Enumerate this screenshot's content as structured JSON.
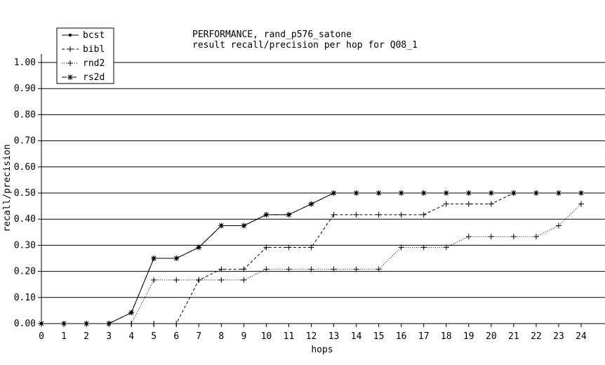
{
  "chart_data": {
    "type": "line",
    "title": "PERFORMANCE, rand_p576_satone",
    "subtitle": "result recall/precision per hop for Q08_1",
    "xlabel": "hops",
    "ylabel": "recall/precision",
    "xlim": [
      0,
      24
    ],
    "ylim": [
      0,
      1.0
    ],
    "xticks": [
      "0",
      "1",
      "2",
      "3",
      "4",
      "5",
      "6",
      "7",
      "8",
      "9",
      "10",
      "11",
      "12",
      "13",
      "14",
      "15",
      "16",
      "17",
      "18",
      "19",
      "20",
      "21",
      "22",
      "23",
      "24"
    ],
    "yticks": [
      "0.00",
      "0.10",
      "0.20",
      "0.30",
      "0.40",
      "0.50",
      "0.60",
      "0.70",
      "0.80",
      "0.90",
      "1.00"
    ],
    "x": [
      0,
      1,
      2,
      3,
      4,
      5,
      6,
      7,
      8,
      9,
      10,
      11,
      12,
      13,
      14,
      15,
      16,
      17,
      18,
      19,
      20,
      21,
      22,
      23,
      24
    ],
    "grid": "horizontal",
    "legend_position": "top-left",
    "series": [
      {
        "name": "bcst",
        "marker": "dot",
        "dash": "solid",
        "values": [
          0,
          0,
          0,
          0,
          0.042,
          0.25,
          0.25,
          0.292,
          0.375,
          0.375,
          0.417,
          0.417,
          0.458,
          0.5,
          0.5,
          0.5,
          0.5,
          0.5,
          0.5,
          0.5,
          0.5,
          0.5,
          0.5,
          0.5,
          0.5
        ]
      },
      {
        "name": "bibl",
        "marker": "plus",
        "dash": "dashed",
        "values": [
          0,
          0,
          0,
          0,
          0,
          0,
          0,
          0.167,
          0.208,
          0.208,
          0.292,
          0.292,
          0.292,
          0.417,
          0.417,
          0.417,
          0.417,
          0.417,
          0.458,
          0.458,
          0.458,
          0.5,
          0.5,
          0.5,
          0.5
        ]
      },
      {
        "name": "rnd2",
        "marker": "plus",
        "dash": "dotted",
        "values": [
          0,
          0,
          0,
          0,
          0,
          0.167,
          0.167,
          0.167,
          0.167,
          0.167,
          0.208,
          0.208,
          0.208,
          0.208,
          0.208,
          0.208,
          0.292,
          0.292,
          0.292,
          0.333,
          0.333,
          0.333,
          0.333,
          0.375,
          0.458
        ]
      },
      {
        "name": "rs2d",
        "marker": "star",
        "dash": "dashdot",
        "values": [
          0,
          0,
          0,
          0,
          0.042,
          0.25,
          0.25,
          0.292,
          0.375,
          0.375,
          0.417,
          0.417,
          0.458,
          0.5,
          0.5,
          0.5,
          0.5,
          0.5,
          0.5,
          0.5,
          0.5,
          0.5,
          0.5,
          0.5,
          0.5
        ]
      }
    ]
  }
}
